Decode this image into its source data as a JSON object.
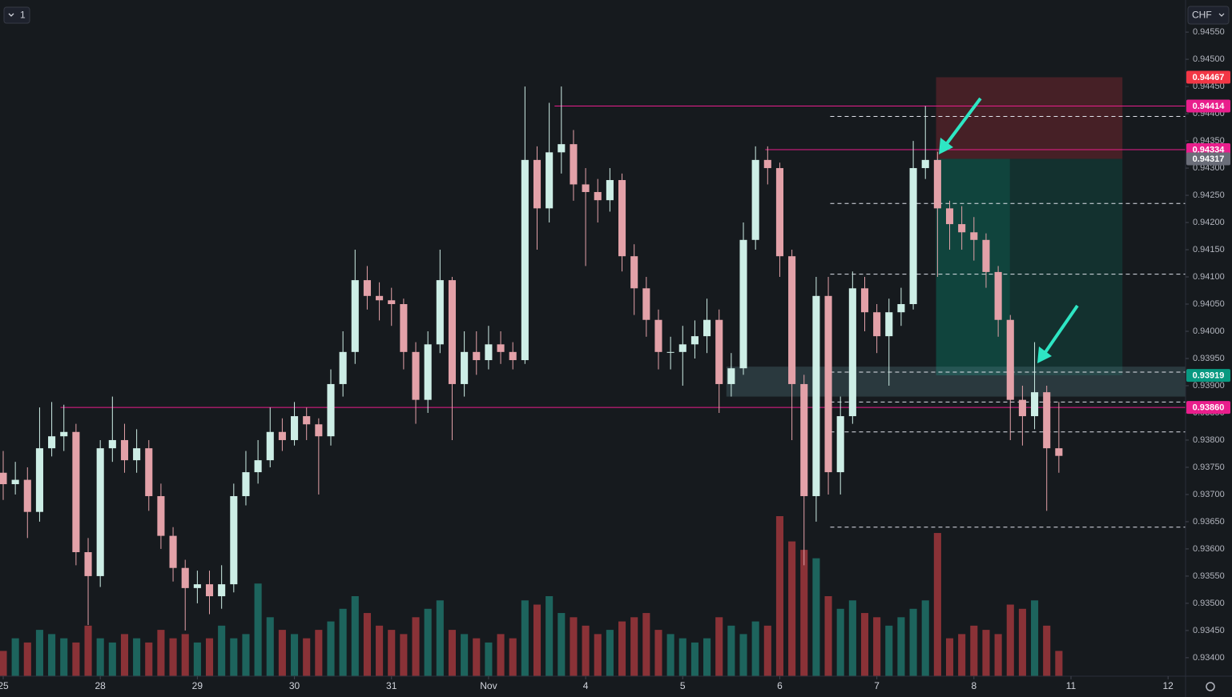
{
  "chart_data": {
    "type": "candlestick",
    "interval_label": "1",
    "currency": "CHF",
    "x": [
      0,
      0.125,
      0.25,
      0.375,
      0.5,
      0.625,
      0.75,
      0.875,
      1,
      1.125,
      1.25,
      1.375,
      1.5,
      1.625,
      1.75,
      1.875,
      2,
      2.125,
      2.25,
      2.375,
      2.5,
      2.625,
      2.75,
      2.875,
      3,
      3.125,
      3.25,
      3.375,
      3.5,
      3.625,
      3.75,
      3.875,
      4,
      4.125,
      4.25,
      4.375,
      4.5,
      4.625,
      4.75,
      4.875,
      5,
      5.125,
      5.25,
      5.375,
      5.5,
      5.625,
      5.75,
      5.875,
      6,
      6.125,
      6.25,
      6.375,
      6.5,
      6.625,
      6.75,
      6.875,
      7,
      7.125,
      7.25,
      7.375,
      7.5,
      7.625,
      7.75,
      7.875,
      8,
      8.125,
      8.25,
      8.375,
      8.5,
      8.625,
      8.75,
      8.875,
      9,
      9.125,
      9.25,
      9.375,
      9.5,
      9.625,
      9.75,
      9.875,
      10,
      10.125,
      10.25,
      10.375,
      10.5,
      10.625,
      10.75,
      10.875
    ],
    "open": [
      0.9374,
      0.93719,
      0.93727,
      0.93668,
      0.93785,
      0.93807,
      0.93815,
      0.93594,
      0.9355,
      0.93785,
      0.938,
      0.93763,
      0.93785,
      0.93697,
      0.93624,
      0.93565,
      0.93528,
      0.93535,
      0.93513,
      0.93535,
      0.93697,
      0.93741,
      0.93763,
      0.93815,
      0.938,
      0.93844,
      0.93829,
      0.93807,
      0.93903,
      0.93962,
      0.94094,
      0.94065,
      0.94057,
      0.9405,
      0.93962,
      0.93874,
      0.93976,
      0.94094,
      0.93903,
      0.93962,
      0.93947,
      0.93976,
      0.93962,
      0.93947,
      0.94315,
      0.94226,
      0.94329,
      0.94344,
      0.9427,
      0.94256,
      0.94241,
      0.94278,
      0.94138,
      0.94079,
      0.94021,
      0.93962,
      0.93962,
      0.93976,
      0.93991,
      0.94021,
      0.93903,
      0.93932,
      0.94168,
      0.94315,
      0.943,
      0.94138,
      0.93903,
      0.93697,
      0.94065,
      0.93741,
      0.93844,
      0.94079,
      0.94035,
      0.93991,
      0.94035,
      0.9405,
      0.943,
      0.94315,
      0.94226,
      0.94197,
      0.94182,
      0.94168,
      0.94109,
      0.94021,
      0.93874,
      0.93844,
      0.93888,
      0.93785
    ],
    "high": [
      0.9378,
      0.9376,
      0.9375,
      0.9386,
      0.9387,
      0.93865,
      0.9383,
      0.9362,
      0.938,
      0.9388,
      0.9383,
      0.9382,
      0.938,
      0.9372,
      0.9364,
      0.9358,
      0.9356,
      0.9356,
      0.9357,
      0.9372,
      0.9378,
      0.938,
      0.9386,
      0.9384,
      0.9387,
      0.9386,
      0.9384,
      0.9393,
      0.94,
      0.9415,
      0.9412,
      0.9409,
      0.9408,
      0.9406,
      0.9398,
      0.94,
      0.9415,
      0.941,
      0.94,
      0.94,
      0.9401,
      0.94,
      0.9398,
      0.9445,
      0.9434,
      0.9442,
      0.9445,
      0.9437,
      0.943,
      0.9428,
      0.943,
      0.9429,
      0.9416,
      0.941,
      0.9404,
      0.9399,
      0.9401,
      0.9402,
      0.9406,
      0.9404,
      0.9396,
      0.942,
      0.9434,
      0.9434,
      0.9431,
      0.9415,
      0.9392,
      0.941,
      0.941,
      0.9388,
      0.9411,
      0.941,
      0.9405,
      0.9406,
      0.9408,
      0.9435,
      0.94414,
      0.9433,
      0.9424,
      0.9423,
      0.9421,
      0.9418,
      0.9412,
      0.9403,
      0.939,
      0.9398,
      0.939,
      0.9387
    ],
    "low": [
      0.9369,
      0.937,
      0.9362,
      0.9365,
      0.9377,
      0.9378,
      0.9357,
      0.9346,
      0.9353,
      0.9376,
      0.9374,
      0.9374,
      0.9367,
      0.936,
      0.9354,
      0.9345,
      0.935,
      0.9348,
      0.9349,
      0.9352,
      0.9368,
      0.9372,
      0.9375,
      0.9378,
      0.9379,
      0.938,
      0.937,
      0.9379,
      0.9388,
      0.9394,
      0.9404,
      0.9402,
      0.9401,
      0.9393,
      0.9383,
      0.9385,
      0.9396,
      0.938,
      0.9388,
      0.9392,
      0.9393,
      0.9394,
      0.9393,
      0.9394,
      0.9415,
      0.942,
      0.9429,
      0.9424,
      0.9412,
      0.942,
      0.9422,
      0.9411,
      0.9403,
      0.9399,
      0.9393,
      0.9393,
      0.939,
      0.9395,
      0.9396,
      0.9385,
      0.9388,
      0.9392,
      0.9415,
      0.9427,
      0.941,
      0.938,
      0.9357,
      0.9365,
      0.937,
      0.937,
      0.9383,
      0.94,
      0.9396,
      0.939,
      0.9401,
      0.9404,
      0.9428,
      0.941,
      0.9415,
      0.9415,
      0.9413,
      0.9408,
      0.9399,
      0.938,
      0.9379,
      0.9382,
      0.9367,
      0.9374
    ],
    "close": [
      0.93719,
      0.93727,
      0.93668,
      0.93785,
      0.93807,
      0.93815,
      0.93594,
      0.9355,
      0.93785,
      0.938,
      0.93763,
      0.93785,
      0.93697,
      0.93624,
      0.93565,
      0.93528,
      0.93535,
      0.93513,
      0.93535,
      0.93697,
      0.93741,
      0.93763,
      0.93815,
      0.938,
      0.93844,
      0.93829,
      0.93807,
      0.93903,
      0.93962,
      0.94094,
      0.94065,
      0.94057,
      0.9405,
      0.93962,
      0.93874,
      0.93976,
      0.94094,
      0.93903,
      0.93962,
      0.93947,
      0.93976,
      0.93962,
      0.93947,
      0.94315,
      0.94226,
      0.94329,
      0.94344,
      0.9427,
      0.94256,
      0.94241,
      0.94278,
      0.94138,
      0.94079,
      0.94021,
      0.93962,
      0.93962,
      0.93976,
      0.93991,
      0.94021,
      0.93903,
      0.93932,
      0.94168,
      0.94315,
      0.943,
      0.94138,
      0.93903,
      0.93697,
      0.94065,
      0.93741,
      0.93844,
      0.94079,
      0.94035,
      0.93991,
      0.94035,
      0.9405,
      0.943,
      0.94315,
      0.94226,
      0.94197,
      0.94182,
      0.94168,
      0.94109,
      0.94021,
      0.93874,
      0.93844,
      0.93888,
      0.93785,
      0.93771
    ],
    "volume": [
      30,
      45,
      40,
      55,
      50,
      45,
      40,
      60,
      45,
      40,
      50,
      45,
      40,
      55,
      45,
      50,
      40,
      45,
      60,
      45,
      50,
      110,
      70,
      55,
      50,
      45,
      55,
      65,
      80,
      95,
      75,
      60,
      55,
      50,
      70,
      80,
      90,
      55,
      50,
      45,
      40,
      50,
      45,
      90,
      85,
      95,
      75,
      70,
      60,
      50,
      55,
      65,
      70,
      75,
      55,
      50,
      45,
      40,
      45,
      70,
      60,
      50,
      65,
      60,
      190,
      160,
      150,
      140,
      95,
      80,
      90,
      75,
      70,
      60,
      70,
      80,
      90,
      170,
      45,
      50,
      60,
      55,
      50,
      85,
      80,
      90,
      60,
      30
    ],
    "up_color": "#cdeee6",
    "down_color": "#e3a1a8",
    "volume_up_color": "#1d645d",
    "volume_down_color": "#8a3237",
    "xlim": [
      -0.033,
      12.18
    ],
    "ylim": [
      0.93366,
      0.94609
    ],
    "xticks": [
      {
        "value": 0,
        "label": "25"
      },
      {
        "value": 1,
        "label": "28"
      },
      {
        "value": 2,
        "label": "29"
      },
      {
        "value": 3,
        "label": "30"
      },
      {
        "value": 4,
        "label": "31"
      },
      {
        "value": 5,
        "label": "Nov"
      },
      {
        "value": 6,
        "label": "4"
      },
      {
        "value": 7,
        "label": "5"
      },
      {
        "value": 8,
        "label": "6"
      },
      {
        "value": 9,
        "label": "7"
      },
      {
        "value": 10,
        "label": "8"
      },
      {
        "value": 11,
        "label": "11"
      },
      {
        "value": 12,
        "label": "12"
      }
    ],
    "yticks": [
      {
        "value": 0.934,
        "label": "0.93400"
      },
      {
        "value": 0.9345,
        "label": "0.93450"
      },
      {
        "value": 0.935,
        "label": "0.93500"
      },
      {
        "value": 0.9355,
        "label": "0.93550"
      },
      {
        "value": 0.936,
        "label": "0.93600"
      },
      {
        "value": 0.9365,
        "label": "0.93650"
      },
      {
        "value": 0.937,
        "label": "0.93700"
      },
      {
        "value": 0.9375,
        "label": "0.93750"
      },
      {
        "value": 0.938,
        "label": "0.93800"
      },
      {
        "value": 0.9385,
        "label": "0.93850"
      },
      {
        "value": 0.939,
        "label": "0.93900"
      },
      {
        "value": 0.9395,
        "label": "0.93950"
      },
      {
        "value": 0.94,
        "label": "0.94000"
      },
      {
        "value": 0.9405,
        "label": "0.94050"
      },
      {
        "value": 0.941,
        "label": "0.94100"
      },
      {
        "value": 0.9415,
        "label": "0.94150"
      },
      {
        "value": 0.942,
        "label": "0.94200"
      },
      {
        "value": 0.9425,
        "label": "0.94250"
      },
      {
        "value": 0.943,
        "label": "0.94300"
      },
      {
        "value": 0.9435,
        "label": "0.94350"
      },
      {
        "value": 0.944,
        "label": "0.94400"
      },
      {
        "value": 0.9445,
        "label": "0.94450"
      },
      {
        "value": 0.945,
        "label": "0.94500"
      },
      {
        "value": 0.9455,
        "label": "0.94550"
      }
    ],
    "boxes": [
      {
        "x": [
          9.61,
          11.53
        ],
        "y": [
          0.94467,
          0.94317
        ],
        "color": "rgba(242,54,69,0.22)"
      },
      {
        "x": [
          9.61,
          11.53
        ],
        "y": [
          0.94317,
          0.93919
        ],
        "color": "rgba(8,153,129,0.18)"
      },
      {
        "x": [
          9.61,
          10.37
        ],
        "y": [
          0.94317,
          0.93919
        ],
        "color": "rgba(8,153,129,0.18)"
      },
      {
        "x": [
          7.45,
          12.18
        ],
        "y": [
          0.93935,
          0.9388
        ],
        "color": "rgba(90,130,140,0.3)"
      }
    ],
    "lines": [
      {
        "value": 0.94414,
        "x0": 5.68
      },
      {
        "value": 0.94334,
        "x0": 7.85
      },
      {
        "value": 0.9386,
        "x0": 0.59
      }
    ],
    "line_color": "#e91e8c",
    "dashed_levels": [
      0.94395,
      0.94235,
      0.94105,
      0.93925,
      0.9387,
      0.93815,
      0.9364
    ],
    "dashed_x0": 8.52,
    "price_labels": [
      0.94467,
      0.94414,
      0.94334,
      0.94317,
      0.93919,
      {
        "value": 0.9386,
        "label": "0.93860"
      }
    ],
    "price_label_colors": [
      "#f23645",
      "#e91e8c",
      "#e91e8c",
      "#6a6d78",
      "#089981",
      "#e91e8c"
    ]
  }
}
